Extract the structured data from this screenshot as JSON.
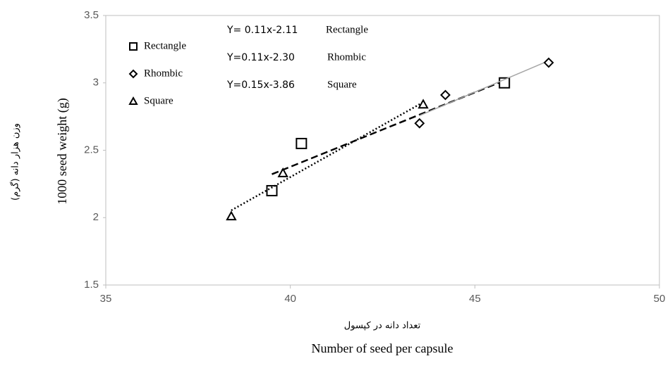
{
  "chart_data": {
    "type": "scatter",
    "xlabel": "Number of seed per capsule",
    "xlabel_fa": "تعداد دانه در کپسول",
    "ylabel": "1000 seed weight (g)",
    "ylabel_fa": "وزن هزار دانه (گرم)",
    "xlim": [
      35,
      50
    ],
    "xticks": [
      35,
      40,
      45,
      50
    ],
    "ylim": [
      1.5,
      3.5
    ],
    "yticks": [
      1.5,
      2,
      2.5,
      3,
      3.5
    ],
    "series": [
      {
        "name": "Rectangle",
        "marker": "square",
        "trendline": "dashed",
        "color": "#000000",
        "trend_color": "#000000",
        "x": [
          39.5,
          40.3,
          45.8
        ],
        "values": [
          2.2,
          2.55,
          3.0
        ]
      },
      {
        "name": "Rhombic",
        "marker": "diamond",
        "trendline": "solid",
        "color": "#000000",
        "trend_color": "#a6a6a6",
        "x": [
          43.5,
          44.2,
          47.0
        ],
        "values": [
          2.7,
          2.91,
          3.15
        ]
      },
      {
        "name": "Square",
        "marker": "triangle",
        "trendline": "dotted",
        "color": "#000000",
        "trend_color": "#000000",
        "x": [
          38.4,
          39.8,
          43.6
        ],
        "values": [
          2.01,
          2.33,
          2.84
        ]
      }
    ],
    "annotations": [
      {
        "equation": "Y= 0.11x-2.11",
        "name": "Rectangle"
      },
      {
        "equation": "Y=0.11x-2.30",
        "name": "Rhombic"
      },
      {
        "equation": "Y=0.15x-3.86",
        "name": "Square"
      }
    ]
  }
}
